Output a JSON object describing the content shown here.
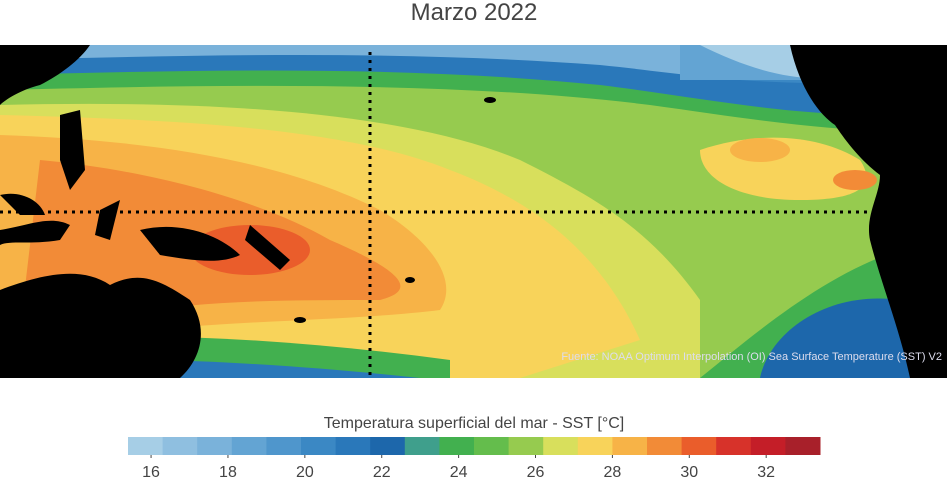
{
  "title": "Marzo 2022",
  "source": "Fuente: NOAA Optimum Interpolation (OI) Sea Surface Temperature (SST) V2",
  "colorbar": {
    "label": "Temperatura superficial del mar - SST  [°C]",
    "xlim": [
      15.4,
      33.4
    ],
    "xticks": [
      16,
      18,
      20,
      22,
      24,
      26,
      28,
      30,
      32
    ],
    "colors": [
      "#a6cee6",
      "#8fbfe0",
      "#7ab2da",
      "#63a4d3",
      "#4f96cc",
      "#3b88c4",
      "#2a78ba",
      "#1d67ab",
      "#3f9f8c",
      "#42b04f",
      "#64bd4c",
      "#96cb4f",
      "#d8df5c",
      "#f8d35a",
      "#f7b347",
      "#f28b37",
      "#ea5d2b",
      "#d7322a",
      "#c41e28",
      "#a8202a"
    ]
  }
}
